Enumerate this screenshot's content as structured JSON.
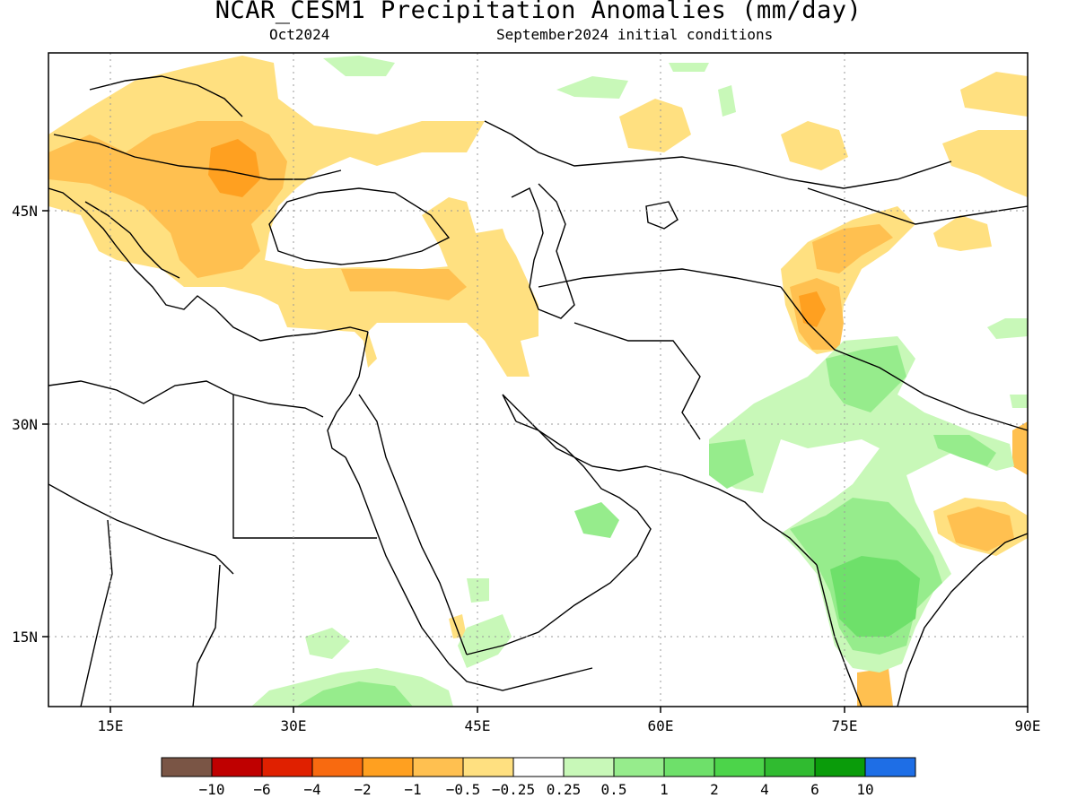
{
  "header": {
    "title": "NCAR_CESM1 Precipitation Anomalies (mm/day)",
    "target_month": "Oct2024",
    "init_conditions": "September2024 initial conditions"
  },
  "axes": {
    "lon_labels": [
      "15E",
      "30E",
      "45E",
      "60E",
      "75E",
      "90E"
    ],
    "lat_labels": [
      "45N",
      "30N",
      "15N"
    ]
  },
  "colorbar": {
    "colors": [
      "#7a5545",
      "#bf0000",
      "#e02000",
      "#f86a10",
      "#ffa020",
      "#ffc050",
      "#ffe080",
      "#ffffff",
      "#c8f8b8",
      "#96ec8c",
      "#6ee06a",
      "#4cd44a",
      "#30bb30",
      "#0a9c0a",
      "#1e6ee6"
    ],
    "tick_labels": [
      "-10",
      "-6",
      "-4",
      "-2",
      "-1",
      "-0.5",
      "-0.25",
      "0.25",
      "0.5",
      "1",
      "2",
      "4",
      "6",
      "10"
    ]
  },
  "anomaly_colors": {
    "dry_light": "#ffe080",
    "dry_medium": "#ffc050",
    "dry_strong": "#ffa020",
    "wet_light": "#c8f8b8",
    "wet_medium": "#96ec8c",
    "wet_strong": "#6ee06a"
  }
}
